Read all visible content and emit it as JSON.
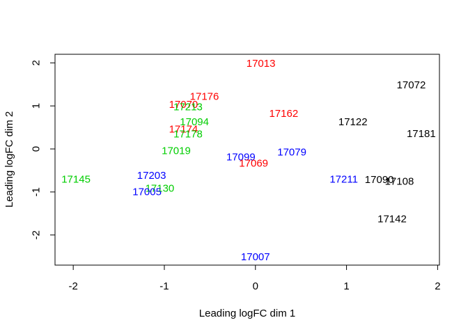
{
  "chart_data": {
    "type": "scatter",
    "title": "",
    "xlabel": "Leading logFC dim 1",
    "ylabel": "Leading logFC dim 2",
    "xlim": [
      -2.2,
      2.02
    ],
    "ylim": [
      -2.7,
      2.2
    ],
    "x_ticks": [
      "-2",
      "-1",
      "0",
      "1",
      "2"
    ],
    "y_ticks": [
      "-2",
      "-1",
      "0",
      "1",
      "2"
    ],
    "grid": false,
    "legend": "none",
    "colors": {
      "red": "#ff0000",
      "green": "#00cd00",
      "blue": "#0000ff",
      "black": "#000000"
    },
    "points": [
      {
        "label": "17013",
        "x": 0.06,
        "y": 1.98,
        "color": "red"
      },
      {
        "label": "17072",
        "x": 1.71,
        "y": 1.48,
        "color": "black"
      },
      {
        "label": "17176",
        "x": -0.56,
        "y": 1.21,
        "color": "red"
      },
      {
        "label": "17070",
        "x": -0.79,
        "y": 1.03,
        "color": "red"
      },
      {
        "label": "17213",
        "x": -0.74,
        "y": 0.97,
        "color": "green"
      },
      {
        "label": "17162",
        "x": 0.31,
        "y": 0.82,
        "color": "red"
      },
      {
        "label": "17122",
        "x": 1.07,
        "y": 0.62,
        "color": "black"
      },
      {
        "label": "17094",
        "x": -0.67,
        "y": 0.62,
        "color": "green"
      },
      {
        "label": "17174",
        "x": -0.79,
        "y": 0.45,
        "color": "red"
      },
      {
        "label": "17178",
        "x": -0.74,
        "y": 0.34,
        "color": "green"
      },
      {
        "label": "17181",
        "x": 1.82,
        "y": 0.35,
        "color": "black"
      },
      {
        "label": "17019",
        "x": -0.87,
        "y": -0.05,
        "color": "green"
      },
      {
        "label": "17079",
        "x": 0.4,
        "y": -0.08,
        "color": "blue"
      },
      {
        "label": "17099",
        "x": -0.16,
        "y": -0.19,
        "color": "blue"
      },
      {
        "label": "17069",
        "x": -0.02,
        "y": -0.34,
        "color": "red"
      },
      {
        "label": "17203",
        "x": -1.14,
        "y": -0.62,
        "color": "blue"
      },
      {
        "label": "17145",
        "x": -1.97,
        "y": -0.71,
        "color": "green"
      },
      {
        "label": "17211",
        "x": 0.97,
        "y": -0.71,
        "color": "blue"
      },
      {
        "label": "17090",
        "x": 1.36,
        "y": -0.72,
        "color": "black"
      },
      {
        "label": "17108",
        "x": 1.58,
        "y": -0.76,
        "color": "black"
      },
      {
        "label": "17130",
        "x": -1.05,
        "y": -0.92,
        "color": "green"
      },
      {
        "label": "17005",
        "x": -1.19,
        "y": -1.0,
        "color": "blue"
      },
      {
        "label": "17142",
        "x": 1.5,
        "y": -1.63,
        "color": "black"
      },
      {
        "label": "17007",
        "x": 0.0,
        "y": -2.51,
        "color": "blue"
      }
    ]
  }
}
